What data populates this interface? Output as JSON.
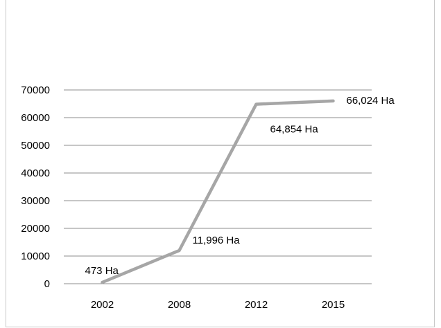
{
  "chart_data": {
    "type": "line",
    "categories": [
      "2002",
      "2008",
      "2012",
      "2015"
    ],
    "series": [
      {
        "values": [
          473,
          11996,
          64854,
          66024
        ],
        "data_labels": [
          "473 Ha",
          "11,996 Ha",
          "64,854 Ha",
          "66,024 Ha"
        ],
        "color": "#a6a6a6"
      }
    ],
    "y_ticks": [
      "0",
      "10000",
      "20000",
      "30000",
      "40000",
      "50000",
      "60000",
      "70000"
    ],
    "ylim": [
      0,
      70000
    ],
    "grid": true,
    "legend": "none"
  }
}
